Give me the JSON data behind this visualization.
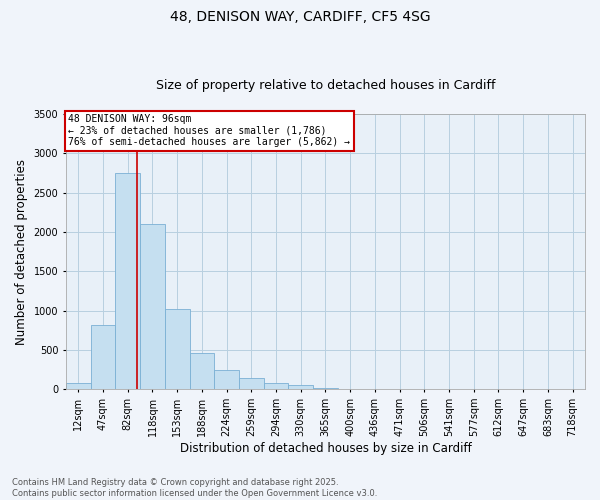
{
  "title_line1": "48, DENISON WAY, CARDIFF, CF5 4SG",
  "title_line2": "Size of property relative to detached houses in Cardiff",
  "xlabel": "Distribution of detached houses by size in Cardiff",
  "ylabel": "Number of detached properties",
  "categories": [
    "12sqm",
    "47sqm",
    "82sqm",
    "118sqm",
    "153sqm",
    "188sqm",
    "224sqm",
    "259sqm",
    "294sqm",
    "330sqm",
    "365sqm",
    "400sqm",
    "436sqm",
    "471sqm",
    "506sqm",
    "541sqm",
    "577sqm",
    "612sqm",
    "647sqm",
    "683sqm",
    "718sqm"
  ],
  "values": [
    75,
    820,
    2750,
    2100,
    1020,
    460,
    240,
    150,
    75,
    50,
    20,
    10,
    5,
    5,
    3,
    2,
    2,
    1,
    1,
    1,
    1
  ],
  "bar_color": "#c5dff0",
  "bar_edge_color": "#7ab0d4",
  "red_line_color": "#cc0000",
  "red_line_x": 2.37,
  "annotation_text": "48 DENISON WAY: 96sqm\n← 23% of detached houses are smaller (1,786)\n76% of semi-detached houses are larger (5,862) →",
  "annotation_box_facecolor": "#ffffff",
  "annotation_box_edgecolor": "#cc0000",
  "ylim": [
    0,
    3500
  ],
  "yticks": [
    0,
    500,
    1000,
    1500,
    2000,
    2500,
    3000,
    3500
  ],
  "bg_color": "#f0f4fa",
  "plot_bg_color": "#e8f0f8",
  "grid_color": "#b8cfe0",
  "title_fontsize": 10,
  "subtitle_fontsize": 9,
  "axis_label_fontsize": 8.5,
  "tick_fontsize": 7,
  "annotation_fontsize": 7,
  "footer_fontsize": 6,
  "footer_line1": "Contains HM Land Registry data © Crown copyright and database right 2025.",
  "footer_line2": "Contains public sector information licensed under the Open Government Licence v3.0."
}
